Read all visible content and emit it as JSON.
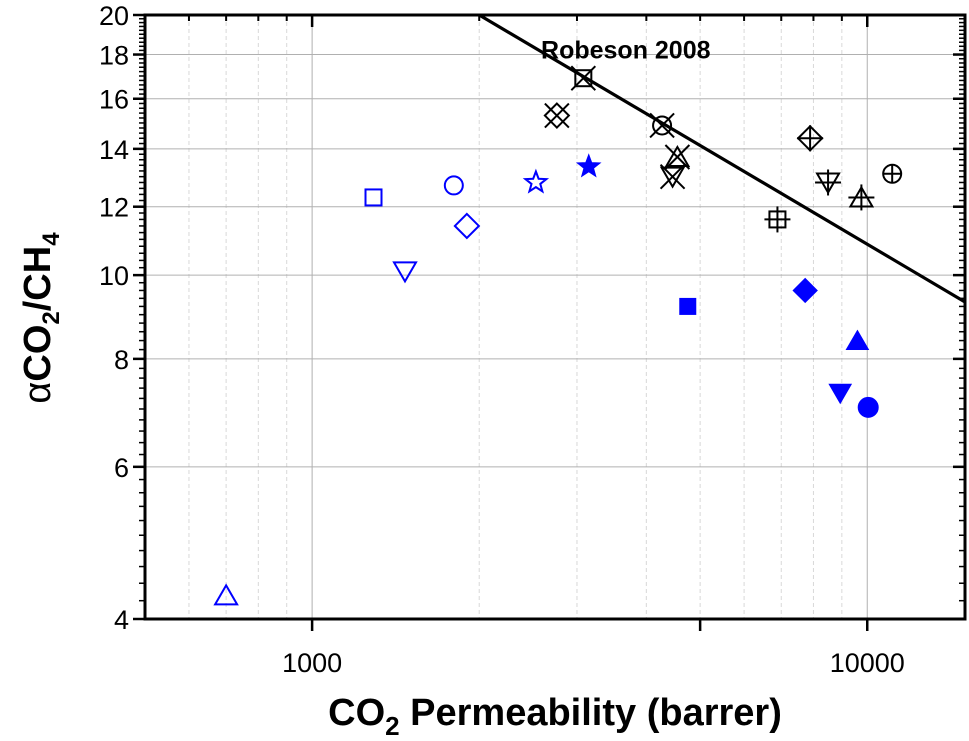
{
  "chart_data": {
    "type": "scatter",
    "title": "",
    "xlabel": "CO2 Permeability (barrer)",
    "xlabel_parts": {
      "pre": "CO",
      "sub": "2",
      "post": " Permeability (barrer)"
    },
    "ylabel": "αCO2/CH4",
    "ylabel_parts": {
      "a": "α",
      "b": "CO",
      "sub1": "2",
      "c": "/CH",
      "sub2": "4"
    },
    "x_scale": "log",
    "y_scale": "log",
    "xlim": [
      500,
      15000
    ],
    "ylim": [
      4,
      20
    ],
    "x_ticks": [
      1000,
      10000
    ],
    "x_tick_labels": [
      "1000",
      "10000"
    ],
    "x_unlabeled_ticks": [
      5000
    ],
    "y_ticks": [
      4,
      6,
      8,
      10,
      12,
      14,
      16,
      18,
      20
    ],
    "y_tick_labels": [
      "4",
      "6",
      "8",
      "10",
      "12",
      "14",
      "16",
      "18",
      "20"
    ],
    "grid": true,
    "legend": "none",
    "colors": {
      "blue": "#0000FF",
      "black": "#000000",
      "grid_major": "#b0b0b0",
      "grid_minor": "#d8d8d8"
    },
    "series": [
      {
        "name": "blue-open-square",
        "marker": "square",
        "fill": "open",
        "color": "blue",
        "x": 1290,
        "y": 12.3
      },
      {
        "name": "blue-open-circle",
        "marker": "circle",
        "fill": "open",
        "color": "blue",
        "x": 1800,
        "y": 12.7
      },
      {
        "name": "blue-open-star",
        "marker": "star",
        "fill": "open",
        "color": "blue",
        "x": 2530,
        "y": 12.8
      },
      {
        "name": "blue-open-diamond",
        "marker": "diamond",
        "fill": "open",
        "color": "blue",
        "x": 1900,
        "y": 11.4
      },
      {
        "name": "blue-open-triangle-down",
        "marker": "triangle-down",
        "fill": "open",
        "color": "blue",
        "x": 1470,
        "y": 10.1
      },
      {
        "name": "blue-open-triangle-up",
        "marker": "triangle-up",
        "fill": "open",
        "color": "blue",
        "x": 700,
        "y": 4.26
      },
      {
        "name": "blue-filled-star",
        "marker": "star",
        "fill": "filled",
        "color": "blue",
        "x": 3150,
        "y": 13.35
      },
      {
        "name": "blue-filled-square",
        "marker": "square",
        "fill": "filled",
        "color": "blue",
        "x": 4750,
        "y": 9.2
      },
      {
        "name": "blue-filled-diamond",
        "marker": "diamond",
        "fill": "filled",
        "color": "blue",
        "x": 7730,
        "y": 9.6
      },
      {
        "name": "blue-filled-triangle-up",
        "marker": "triangle-up",
        "fill": "filled",
        "color": "blue",
        "x": 9600,
        "y": 8.4
      },
      {
        "name": "blue-filled-triangle-down",
        "marker": "triangle-down",
        "fill": "filled",
        "color": "blue",
        "x": 8940,
        "y": 7.3
      },
      {
        "name": "blue-filled-circle",
        "marker": "circle",
        "fill": "filled",
        "color": "blue",
        "x": 10040,
        "y": 7.03
      },
      {
        "name": "black-square-x",
        "marker": "square-x",
        "fill": "open",
        "color": "black",
        "x": 3080,
        "y": 16.9
      },
      {
        "name": "black-diamond-x",
        "marker": "diamond-x",
        "fill": "open",
        "color": "black",
        "x": 2760,
        "y": 15.3
      },
      {
        "name": "black-circle-x",
        "marker": "circle-x",
        "fill": "open",
        "color": "black",
        "x": 4270,
        "y": 14.9
      },
      {
        "name": "black-triangle-up-x",
        "marker": "triangle-up-x",
        "fill": "open",
        "color": "black",
        "x": 4550,
        "y": 13.7
      },
      {
        "name": "black-triangle-down-x",
        "marker": "triangle-down-x",
        "fill": "open",
        "color": "black",
        "x": 4460,
        "y": 13.0
      },
      {
        "name": "black-diamond-plus",
        "marker": "diamond-plus",
        "fill": "open",
        "color": "black",
        "x": 7890,
        "y": 14.4
      },
      {
        "name": "black-triangle-down-plus",
        "marker": "triangle-down-plus",
        "fill": "open",
        "color": "black",
        "x": 8500,
        "y": 12.8
      },
      {
        "name": "black-triangle-up-plus",
        "marker": "triangle-up-plus",
        "fill": "open",
        "color": "black",
        "x": 9760,
        "y": 12.3
      },
      {
        "name": "black-circle-plus",
        "marker": "circle-plus",
        "fill": "open",
        "color": "black",
        "x": 11090,
        "y": 13.1
      },
      {
        "name": "black-square-plus",
        "marker": "square-plus",
        "fill": "open",
        "color": "black",
        "x": 6890,
        "y": 11.6
      }
    ],
    "lines": [
      {
        "name": "Robeson 2008 upper bound",
        "x": [
          2000,
          15000
        ],
        "y": [
          20,
          9.31
        ]
      }
    ],
    "annotations": [
      {
        "text": "Robeson 2008",
        "x": 2500,
        "y": 18.3
      }
    ]
  }
}
